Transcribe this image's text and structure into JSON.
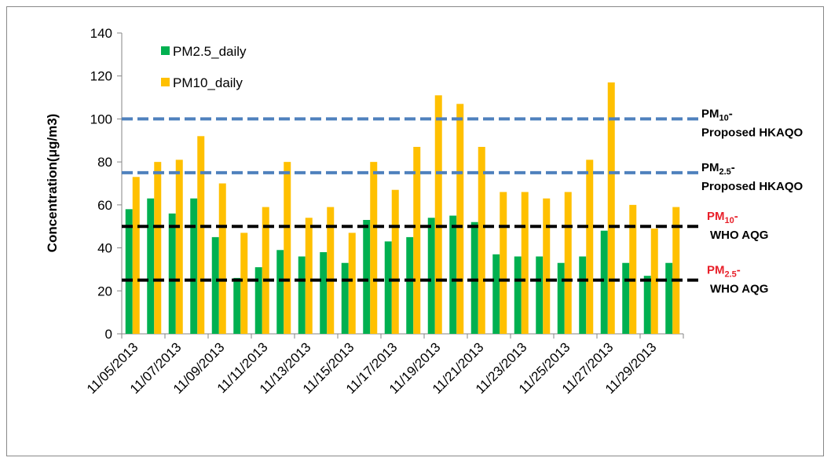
{
  "chart_data": {
    "type": "bar",
    "y_axis_label": "Concentration(μg/m3)",
    "categories": [
      "11/05/2013",
      null,
      "11/07/2013",
      null,
      "11/09/2013",
      null,
      "11/11/2013",
      null,
      "11/13/2013",
      null,
      "11/15/2013",
      null,
      "11/17/2013",
      null,
      "11/19/2013",
      null,
      "11/21/2013",
      null,
      "11/23/2013",
      null,
      "11/25/2013",
      null,
      "11/27/2013",
      null,
      "11/29/2013",
      null
    ],
    "series": [
      {
        "name": "PM2.5_daily",
        "color": "#00b050",
        "values": [
          58,
          63,
          56,
          63,
          45,
          26,
          31,
          39,
          36,
          38,
          33,
          53,
          43,
          45,
          54,
          55,
          52,
          37,
          36,
          36,
          33,
          36,
          48,
          33,
          27,
          33
        ]
      },
      {
        "name": "PM10_daily",
        "color": "#ffc000",
        "values": [
          73,
          80,
          81,
          92,
          70,
          47,
          59,
          80,
          54,
          59,
          47,
          80,
          67,
          87,
          111,
          107,
          87,
          66,
          66,
          63,
          66,
          81,
          117,
          60,
          49,
          59
        ]
      }
    ],
    "ylim": [
      0,
      140
    ],
    "yticks": [
      0,
      20,
      40,
      60,
      80,
      100,
      120,
      140
    ],
    "grid": false,
    "legend": "top-left",
    "reference_lines": [
      {
        "value": 100,
        "color": "#4f81bd",
        "label_color": "#000000",
        "label_main": "PM",
        "label_sub": "10",
        "label_dash": "-",
        "label_line2": "Proposed HKAQO"
      },
      {
        "value": 75,
        "color": "#4f81bd",
        "label_color": "#000000",
        "label_main": "PM",
        "label_sub": "2.5",
        "label_dash": "-",
        "label_line2": "Proposed HKAQO"
      },
      {
        "value": 50,
        "color": "#000000",
        "label_color": "#e8202a",
        "label_main": "PM",
        "label_sub": "10",
        "label_dash": "-",
        "label_line2": "WHO AQG"
      },
      {
        "value": 25,
        "color": "#000000",
        "label_color": "#e8202a",
        "label_main": "PM",
        "label_sub": "2.5",
        "label_dash": "-",
        "label_line2": "WHO AQG"
      }
    ]
  }
}
